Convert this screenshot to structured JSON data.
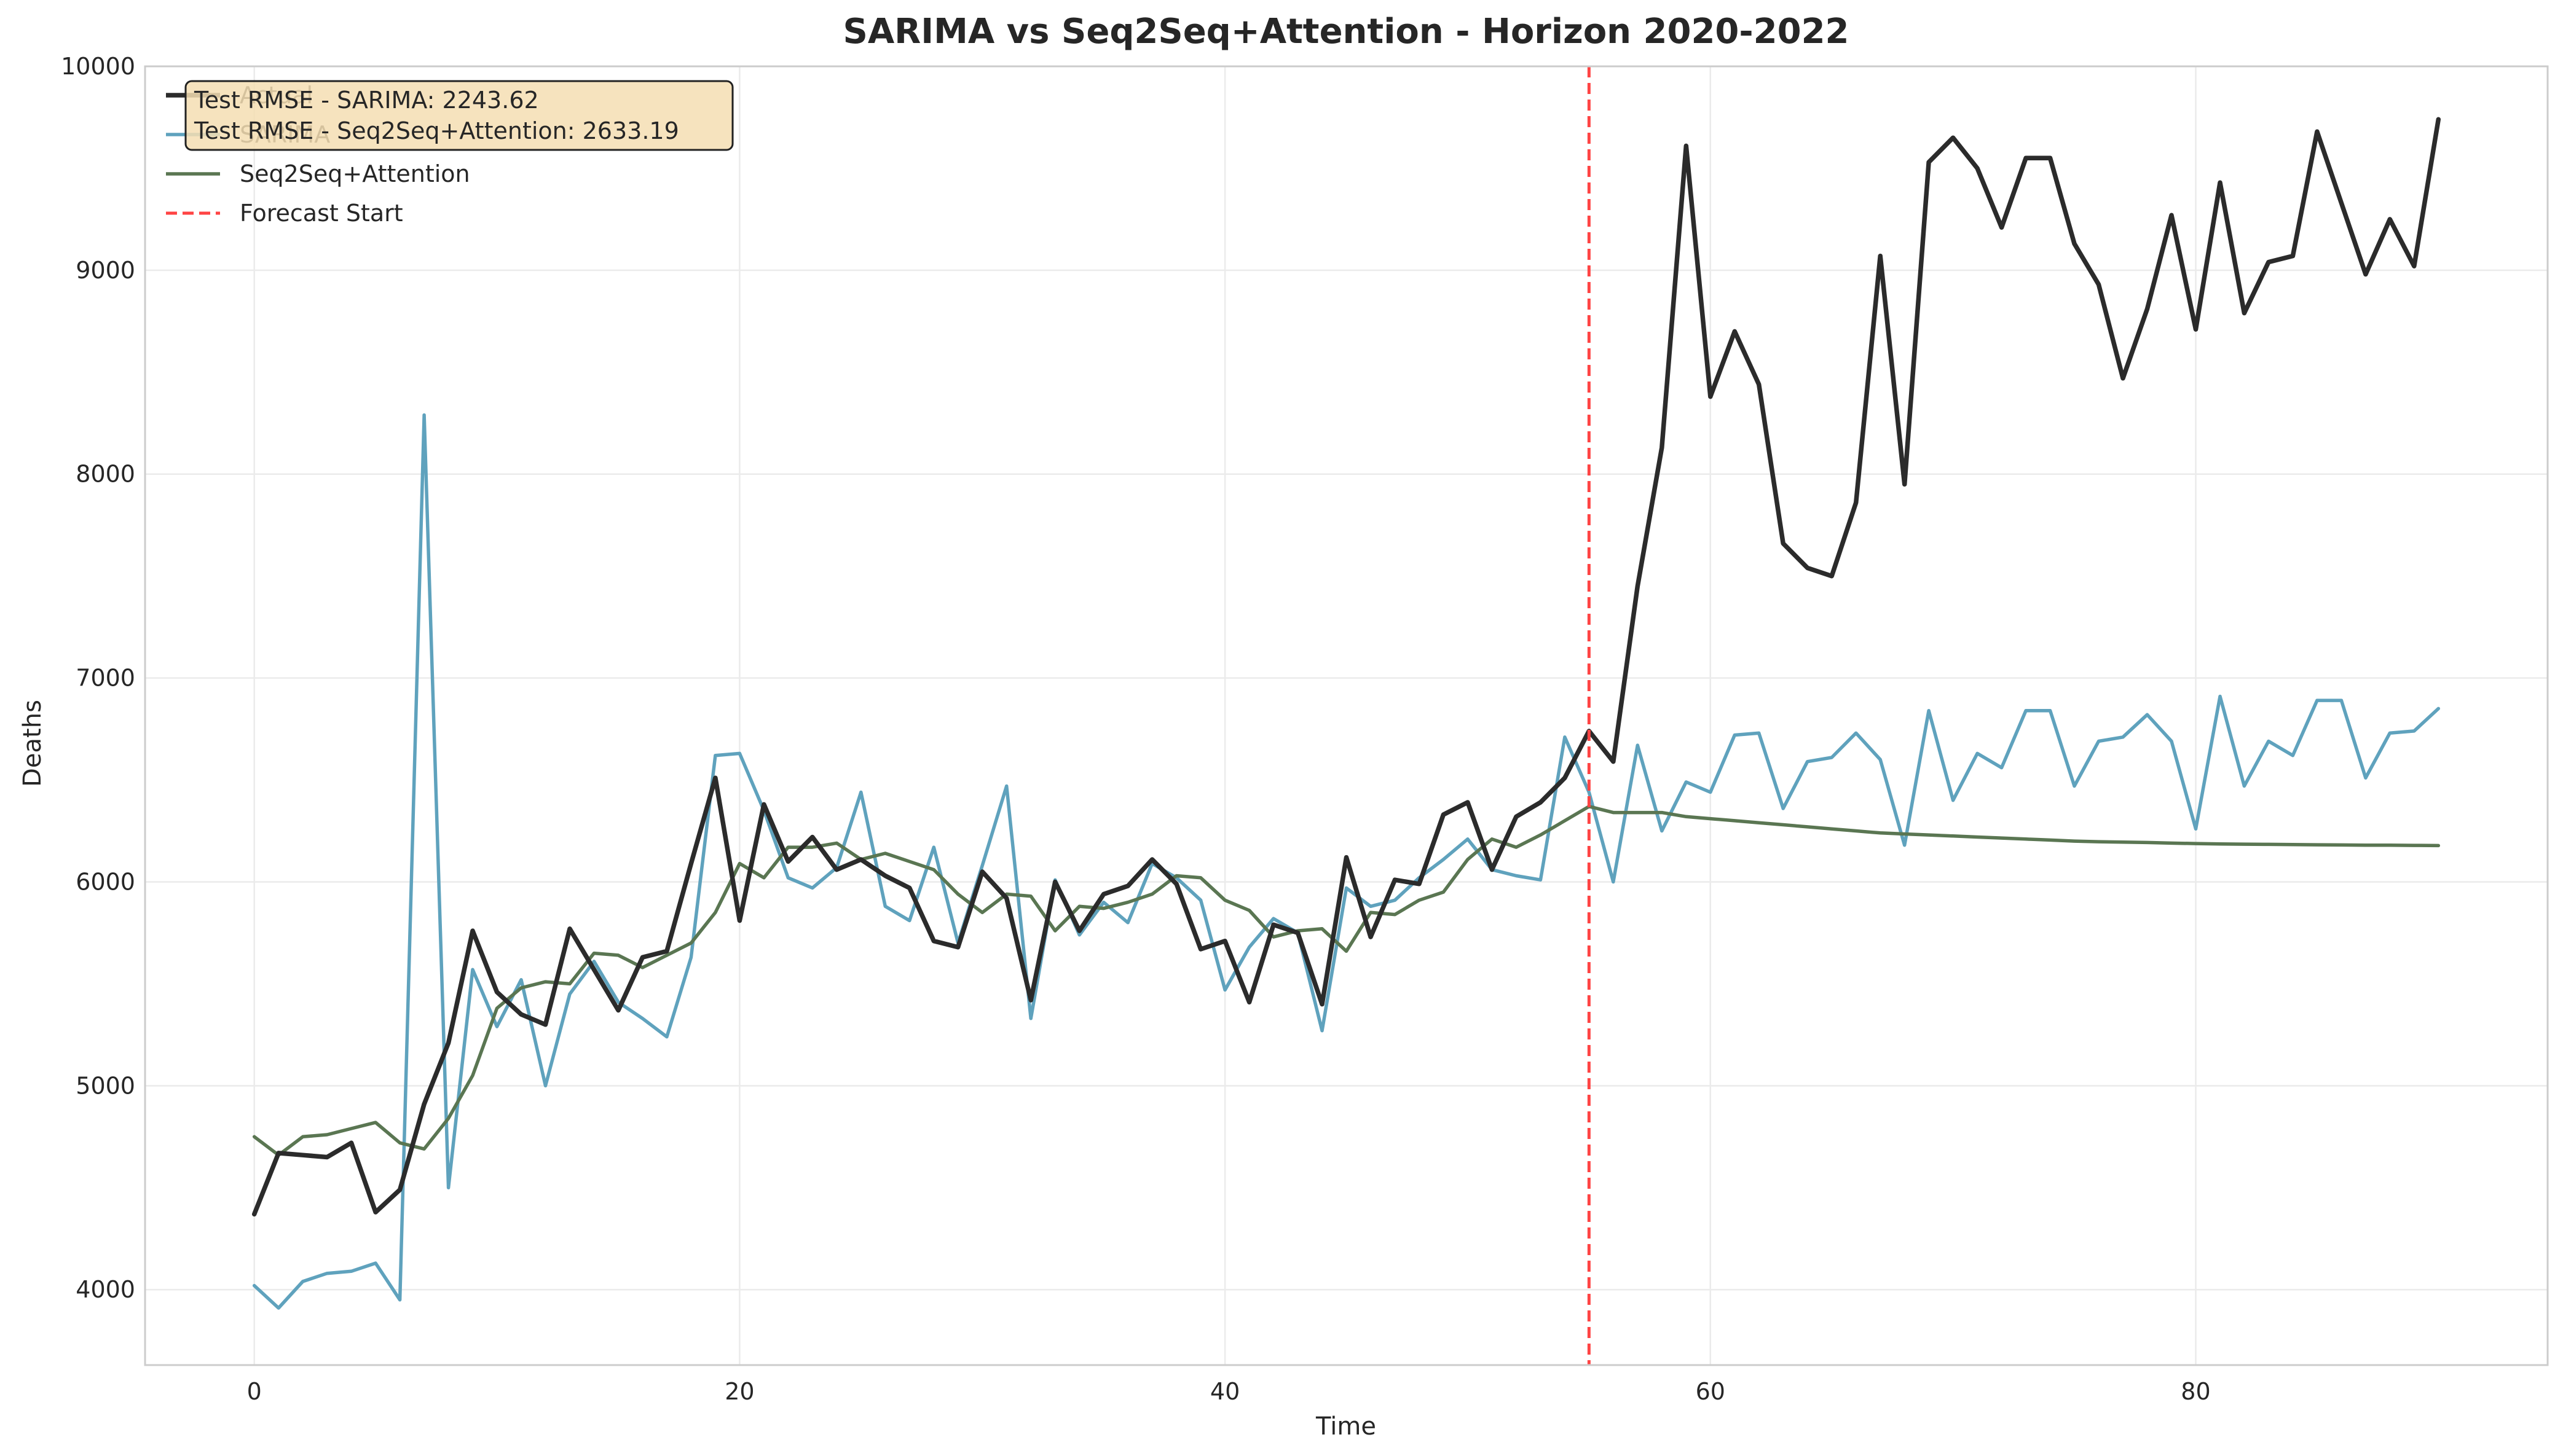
{
  "chart_data": {
    "type": "line",
    "title": "SARIMA vs Seq2Seq+Attention - Horizon 2020-2022",
    "xlabel": "Time",
    "ylabel": "Deaths",
    "xlim": [
      -4.5,
      94.5
    ],
    "ylim": [
      3630,
      10000
    ],
    "xticks": [
      0,
      20,
      40,
      60,
      80
    ],
    "yticks": [
      4000,
      5000,
      6000,
      7000,
      8000,
      9000,
      10000
    ],
    "grid": true,
    "legend_position": "top-left",
    "forecast_start": 55,
    "series": [
      {
        "name": "Actual",
        "color": "#2b2b2b",
        "values": [
          4370,
          4670,
          4660,
          4650,
          4720,
          4380,
          4490,
          4910,
          5210,
          5760,
          5460,
          5350,
          5300,
          5770,
          5570,
          5370,
          5630,
          5660,
          6090,
          6510,
          5810,
          6380,
          6100,
          6220,
          6060,
          6110,
          6030,
          5970,
          5710,
          5680,
          6050,
          5920,
          5420,
          6000,
          5760,
          5940,
          5980,
          6110,
          5990,
          5670,
          5710,
          5410,
          5790,
          5750,
          5400,
          6120,
          5730,
          6010,
          5990,
          6330,
          6390,
          6060,
          6320,
          6390,
          6510,
          6740,
          6590,
          7450,
          8130,
          9610,
          8380,
          8700,
          8440,
          7660,
          7540,
          7500,
          7860,
          9070,
          7950,
          9530,
          9650,
          9500,
          9210,
          9550,
          9550,
          9130,
          8930,
          8470,
          8810,
          9270,
          8710,
          9430,
          8790,
          9040,
          9070,
          9680,
          9330,
          8980,
          9250,
          9020,
          9740
        ]
      },
      {
        "name": "SARIMA",
        "color": "#5fa2bd",
        "values": [
          4020,
          3910,
          4040,
          4080,
          4090,
          4130,
          3950,
          8290,
          4500,
          5570,
          5290,
          5520,
          5000,
          5450,
          5610,
          5410,
          5330,
          5240,
          5630,
          6620,
          6630,
          6350,
          6020,
          5970,
          6070,
          6440,
          5880,
          5810,
          6170,
          5700,
          6080,
          6470,
          5330,
          6010,
          5740,
          5900,
          5800,
          6090,
          6020,
          5910,
          5470,
          5680,
          5820,
          5750,
          5270,
          5970,
          5880,
          5910,
          6020,
          6110,
          6210,
          6060,
          6030,
          6010,
          6710,
          6440,
          6000,
          6670,
          6250,
          6490,
          6440,
          6720,
          6730,
          6360,
          6590,
          6610,
          6730,
          6600,
          6180,
          6840,
          6400,
          6630,
          6560,
          6840,
          6840,
          6470,
          6690,
          6710,
          6820,
          6690,
          6260,
          6910,
          6470,
          6690,
          6620,
          6890,
          6890,
          6510,
          6730,
          6740,
          6850
        ]
      },
      {
        "name": "Seq2Seq+Attention",
        "color": "#5a7652",
        "values": [
          4750,
          4660,
          4750,
          4760,
          4790,
          4820,
          4720,
          4690,
          4840,
          5050,
          5380,
          5480,
          5510,
          5500,
          5650,
          5640,
          5580,
          5640,
          5700,
          5850,
          6090,
          6020,
          6170,
          6170,
          6190,
          6110,
          6140,
          6100,
          6060,
          5940,
          5850,
          5940,
          5930,
          5760,
          5880,
          5870,
          5900,
          5940,
          6030,
          6020,
          5910,
          5860,
          5730,
          5760,
          5770,
          5660,
          5850,
          5840,
          5910,
          5950,
          6110,
          6210,
          6170,
          6230,
          6300,
          6370,
          6340,
          6340,
          6340,
          6320,
          6310,
          6300,
          6290,
          6280,
          6270,
          6260,
          6250,
          6240,
          6235,
          6230,
          6225,
          6220,
          6215,
          6210,
          6205,
          6200,
          6197,
          6195,
          6193,
          6190,
          6188,
          6186,
          6185,
          6184,
          6183,
          6182,
          6181,
          6180,
          6180,
          6179,
          6178
        ]
      }
    ],
    "forecast_line": {
      "name": "Forecast Start",
      "color": "#ff4444"
    },
    "annotation": {
      "lines": [
        "Test RMSE - SARIMA: 2243.62",
        "Test RMSE - Seq2Seq+Attention: 2633.19"
      ],
      "background": "#f5deb3"
    },
    "legend_labels": [
      "Actual",
      "SARIMA",
      "Seq2Seq+Attention",
      "Forecast Start"
    ]
  }
}
